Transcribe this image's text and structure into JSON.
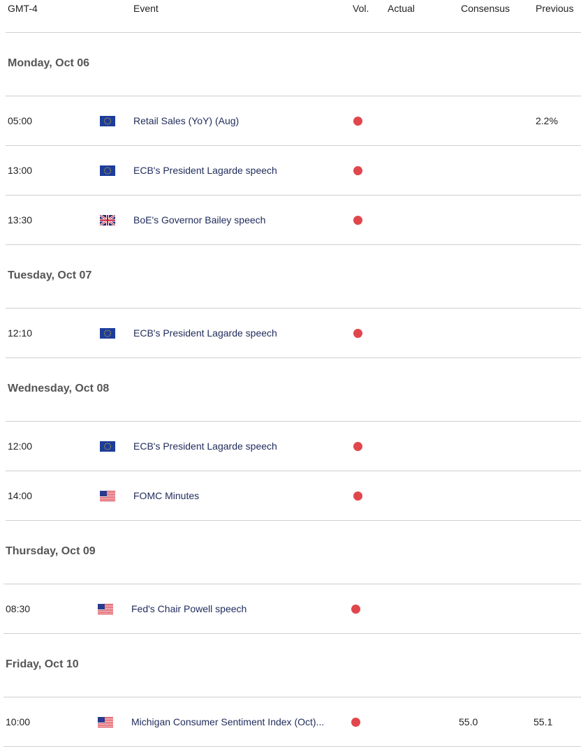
{
  "header": {
    "timezone": "GMT-4",
    "event": "Event",
    "vol": "Vol.",
    "actual": "Actual",
    "consensus": "Consensus",
    "previous": "Previous"
  },
  "colors": {
    "high_volatility": "#e0474c",
    "event_text": "#1f2a5a",
    "divider": "#cfcfcf"
  },
  "days": [
    {
      "label": "Monday, Oct 06",
      "events": [
        {
          "time": "05:00",
          "flag": "eu-flag-icon",
          "name": "Retail Sales (YoY) (Aug)",
          "vol": "high",
          "actual": "",
          "consensus": "",
          "previous": "2.2%"
        },
        {
          "time": "13:00",
          "flag": "eu-flag-icon",
          "name": "ECB's President Lagarde speech",
          "vol": "high",
          "actual": "",
          "consensus": "",
          "previous": ""
        },
        {
          "time": "13:30",
          "flag": "uk-flag-icon",
          "name": "BoE's Governor Bailey speech",
          "vol": "high",
          "actual": "",
          "consensus": "",
          "previous": ""
        }
      ]
    },
    {
      "label": "Tuesday, Oct 07",
      "events": [
        {
          "time": "12:10",
          "flag": "eu-flag-icon",
          "name": "ECB's President Lagarde speech",
          "vol": "high",
          "actual": "",
          "consensus": "",
          "previous": ""
        }
      ]
    },
    {
      "label": "Wednesday, Oct 08",
      "events": [
        {
          "time": "12:00",
          "flag": "eu-flag-icon",
          "name": "ECB's President Lagarde speech",
          "vol": "high",
          "actual": "",
          "consensus": "",
          "previous": ""
        },
        {
          "time": "14:00",
          "flag": "us-flag-icon",
          "name": "FOMC Minutes",
          "vol": "high",
          "actual": "",
          "consensus": "",
          "previous": ""
        }
      ]
    },
    {
      "label": "Thursday, Oct 09",
      "events": [
        {
          "time": "08:30",
          "flag": "us-flag-icon",
          "name": "Fed's Chair Powell speech",
          "vol": "high",
          "actual": "",
          "consensus": "",
          "previous": ""
        }
      ]
    },
    {
      "label": "Friday, Oct 10",
      "events": [
        {
          "time": "10:00",
          "flag": "us-flag-icon",
          "name": "Michigan Consumer Sentiment Index (Oct)...",
          "vol": "high",
          "actual": "",
          "consensus": "55.0",
          "previous": "55.1"
        }
      ]
    }
  ]
}
